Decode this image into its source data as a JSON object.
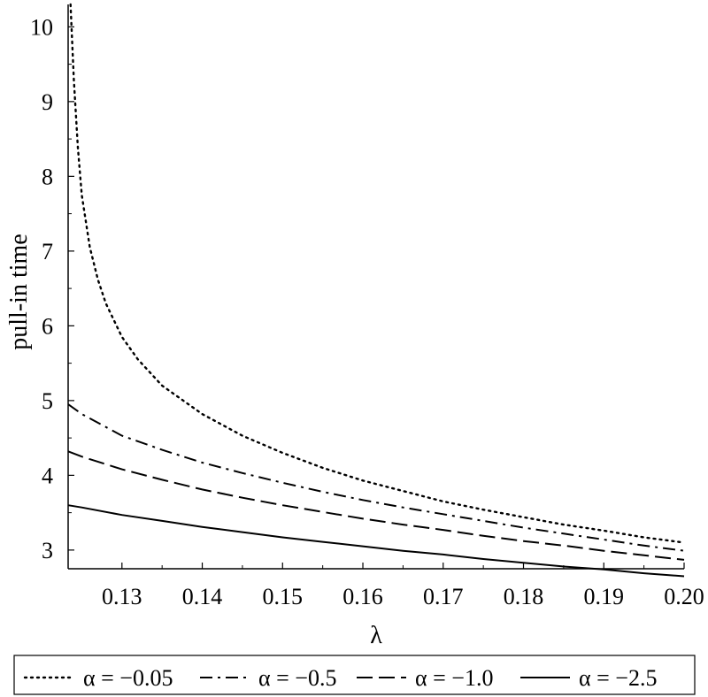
{
  "chart_data": {
    "type": "line",
    "xlabel": "λ",
    "ylabel": "pull-in time",
    "xlim": [
      0.1233,
      0.2
    ],
    "ylim": [
      2.75,
      10.3
    ],
    "xticks": [
      {
        "value": 0.13,
        "label": "0.13"
      },
      {
        "value": 0.14,
        "label": "0.14"
      },
      {
        "value": 0.15,
        "label": "0.15"
      },
      {
        "value": 0.16,
        "label": "0.16"
      },
      {
        "value": 0.17,
        "label": "0.17"
      },
      {
        "value": 0.18,
        "label": "0.18"
      },
      {
        "value": 0.19,
        "label": "0.19"
      },
      {
        "value": 0.2,
        "label": "0.20"
      }
    ],
    "yticks": [
      {
        "value": 3,
        "label": "3"
      },
      {
        "value": 4,
        "label": "4"
      },
      {
        "value": 5,
        "label": "5"
      },
      {
        "value": 6,
        "label": "6"
      },
      {
        "value": 7,
        "label": "7"
      },
      {
        "value": 8,
        "label": "8"
      },
      {
        "value": 9,
        "label": "9"
      },
      {
        "value": 10,
        "label": "10"
      }
    ],
    "legend_position": "bottom",
    "series": [
      {
        "name": "α = −0.05",
        "style": "dotted",
        "x": [
          0.1236,
          0.124,
          0.1245,
          0.125,
          0.126,
          0.127,
          0.128,
          0.13,
          0.132,
          0.135,
          0.14,
          0.145,
          0.15,
          0.155,
          0.16,
          0.165,
          0.17,
          0.175,
          0.18,
          0.185,
          0.19,
          0.195,
          0.2
        ],
        "y": [
          10.3,
          9.3,
          8.4,
          7.75,
          7.05,
          6.62,
          6.3,
          5.85,
          5.55,
          5.2,
          4.82,
          4.53,
          4.3,
          4.1,
          3.93,
          3.79,
          3.65,
          3.54,
          3.44,
          3.34,
          3.26,
          3.17,
          3.1
        ]
      },
      {
        "name": "α = −0.5",
        "style": "dashdot",
        "x": [
          0.1233,
          0.125,
          0.13,
          0.135,
          0.14,
          0.145,
          0.15,
          0.155,
          0.16,
          0.165,
          0.17,
          0.175,
          0.18,
          0.185,
          0.19,
          0.195,
          0.2
        ],
        "y": [
          4.95,
          4.82,
          4.53,
          4.34,
          4.17,
          4.03,
          3.9,
          3.78,
          3.67,
          3.57,
          3.48,
          3.39,
          3.3,
          3.22,
          3.14,
          3.06,
          2.99
        ]
      },
      {
        "name": "α = −1.0",
        "style": "dashed",
        "x": [
          0.1233,
          0.125,
          0.13,
          0.135,
          0.14,
          0.145,
          0.15,
          0.155,
          0.16,
          0.165,
          0.17,
          0.175,
          0.18,
          0.185,
          0.19,
          0.195,
          0.2
        ],
        "y": [
          4.32,
          4.25,
          4.08,
          3.94,
          3.81,
          3.7,
          3.6,
          3.51,
          3.42,
          3.34,
          3.27,
          3.19,
          3.12,
          3.06,
          2.99,
          2.93,
          2.87
        ]
      },
      {
        "name": "α = −2.5",
        "style": "solid",
        "x": [
          0.1233,
          0.125,
          0.13,
          0.135,
          0.14,
          0.145,
          0.15,
          0.155,
          0.16,
          0.165,
          0.17,
          0.175,
          0.18,
          0.185,
          0.19,
          0.195,
          0.2
        ],
        "y": [
          3.6,
          3.57,
          3.47,
          3.39,
          3.31,
          3.24,
          3.17,
          3.11,
          3.05,
          2.99,
          2.94,
          2.88,
          2.83,
          2.78,
          2.74,
          2.69,
          2.65
        ]
      }
    ]
  }
}
